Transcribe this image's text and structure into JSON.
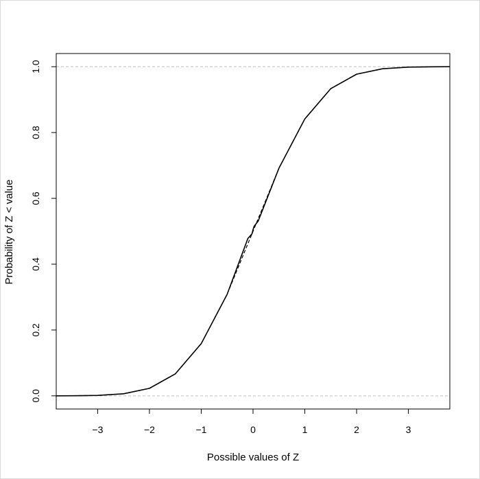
{
  "chart_data": {
    "type": "line",
    "title": "",
    "xlabel": "Possible values of Z",
    "ylabel": "Probability of Z < value",
    "xlim": [
      -3.8,
      3.8
    ],
    "ylim": [
      -0.04,
      1.04
    ],
    "x_ticks": [
      -3,
      -2,
      -1,
      0,
      1,
      2,
      3
    ],
    "x_tick_labels": [
      "−3",
      "−2",
      "−1",
      "0",
      "1",
      "2",
      "3"
    ],
    "y_ticks": [
      0.0,
      0.2,
      0.4,
      0.6,
      0.8,
      1.0
    ],
    "y_tick_labels": [
      "0.0",
      "0.2",
      "0.4",
      "0.6",
      "0.8",
      "1.0"
    ],
    "reference_lines": [
      0,
      1
    ],
    "grid": false,
    "legend": "none",
    "series": [
      {
        "style": "solid",
        "color": "#000000",
        "x": [
          -3.8,
          -3.5,
          -3.0,
          -2.5,
          -2.0,
          -1.5,
          -1.0,
          -0.5,
          -0.1,
          -0.02,
          0.0,
          0.02,
          0.1,
          0.5,
          1.0,
          1.5,
          2.0,
          2.5,
          3.0,
          3.5,
          3.8
        ],
        "y": [
          0.0001,
          0.0002,
          0.0013,
          0.0062,
          0.0228,
          0.0668,
          0.1587,
          0.3085,
          0.478,
          0.492,
          0.505,
          0.515,
          0.531,
          0.6915,
          0.8413,
          0.9332,
          0.9772,
          0.9938,
          0.9987,
          0.9998,
          0.9999
        ]
      },
      {
        "style": "dashed",
        "color": "#000000",
        "x": [
          -3.8,
          -3.5,
          -3.0,
          -2.5,
          -2.0,
          -1.5,
          -1.0,
          -0.5,
          0.0,
          0.5,
          1.0,
          1.5,
          2.0,
          2.5,
          3.0,
          3.5,
          3.8
        ],
        "y": [
          0.0001,
          0.0002,
          0.0013,
          0.0062,
          0.0228,
          0.0668,
          0.1587,
          0.3085,
          0.5,
          0.6915,
          0.8413,
          0.9332,
          0.9772,
          0.9938,
          0.9987,
          0.9998,
          0.9999
        ]
      }
    ],
    "colors": {
      "reference_line": "#bdbdbd",
      "axis": "#000000",
      "curve": "#000000"
    }
  }
}
